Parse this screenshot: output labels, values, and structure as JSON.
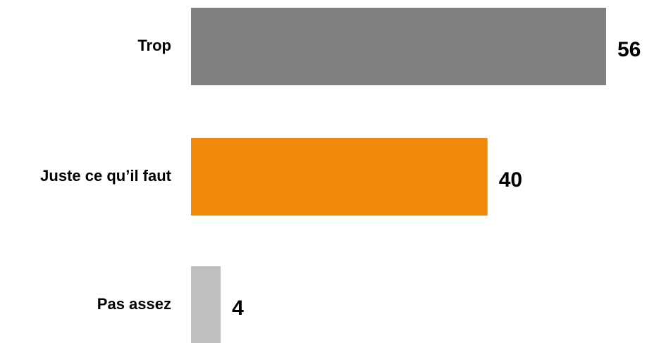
{
  "chart_data": {
    "type": "bar",
    "orientation": "horizontal",
    "categories": [
      "Trop",
      "Juste ce qu’il faut",
      "Pas assez"
    ],
    "values": [
      56,
      40,
      4
    ],
    "colors": [
      "#808080",
      "#F0890A",
      "#BFBFBF"
    ],
    "data_labels": [
      "56",
      "40",
      "4"
    ],
    "title": "",
    "xlabel": "",
    "ylabel": "",
    "xlim": [
      0,
      56
    ],
    "grid": false,
    "legend": "none"
  }
}
